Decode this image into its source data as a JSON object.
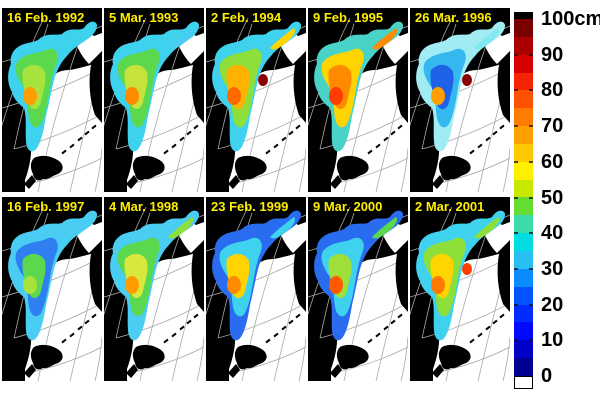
{
  "figure": {
    "background": "#ffffff",
    "map_background": "#000000",
    "ocean_color": "#ffffff",
    "land_color": "#000000",
    "graticule_color": "#a9a9a9",
    "date_color": "#ffee00",
    "rows": 2,
    "cols": 5
  },
  "panels": [
    {
      "date": "16 Feb. 1992",
      "fills": {
        "base": "#3fd2ee",
        "mid": "#5cd84e",
        "core": "#a8e23c",
        "arm": "#3fd2ee",
        "spot1": "#ff9c00",
        "spot2": "transparent"
      }
    },
    {
      "date": "5 Mar. 1993",
      "fills": {
        "base": "#3fd2ee",
        "mid": "#5cd84e",
        "core": "#c6e23c",
        "arm": "#49cdf2",
        "spot1": "#ff8a00",
        "spot2": "transparent"
      }
    },
    {
      "date": "2 Feb. 1994",
      "fills": {
        "base": "#3fd2ee",
        "mid": "#8fdf3a",
        "core": "#ffb300",
        "arm": "#ffd400",
        "spot1": "#ff6a00",
        "spot2": "#8b0000"
      }
    },
    {
      "date": "9 Feb. 1995",
      "fills": {
        "base": "#49d2c8",
        "mid": "#ffd400",
        "core": "#ff8a00",
        "arm": "#ff8a00",
        "spot1": "#ff3c00",
        "spot2": "transparent"
      }
    },
    {
      "date": "26 Mar. 1996",
      "fills": {
        "base": "#a0ecf2",
        "mid": "#35b7f0",
        "core": "#1f62e8",
        "arm": "#7fe8f0",
        "spot1": "#ffa000",
        "spot2": "#8b0000"
      }
    },
    {
      "date": "16 Feb. 1997",
      "fills": {
        "base": "#49cdf2",
        "mid": "#2f7ff0",
        "core": "#5cd84e",
        "arm": "#49cdf2",
        "spot1": "#a8e23c",
        "spot2": "transparent"
      }
    },
    {
      "date": "4 Mar. 1998",
      "fills": {
        "base": "#49cdf2",
        "mid": "#5cd84e",
        "core": "#d9e83c",
        "arm": "#8fdf3a",
        "spot1": "#ff9c00",
        "spot2": "transparent"
      }
    },
    {
      "date": "23 Feb. 1999",
      "fills": {
        "base": "#2a6cf0",
        "mid": "#3fd2ee",
        "core": "#ffd400",
        "arm": "#3fd2ee",
        "spot1": "#ff8c00",
        "spot2": "transparent"
      }
    },
    {
      "date": "9 Mar. 2000",
      "fills": {
        "base": "#2a6cf0",
        "mid": "#3fd2ee",
        "core": "#9fdf3a",
        "arm": "#5cd84e",
        "spot1": "#ff5a00",
        "spot2": "transparent"
      }
    },
    {
      "date": "2 Mar. 2001",
      "fills": {
        "base": "#3fd2ee",
        "mid": "#8fdf3a",
        "core": "#ffd400",
        "arm": "#8fdf3a",
        "spot1": "#ff7a00",
        "spot2": "#ff3c00"
      }
    }
  ],
  "colorbar": {
    "unit": "cm",
    "ticks": [
      {
        "value": 100,
        "label": "100"
      },
      {
        "value": 90,
        "label": "90"
      },
      {
        "value": 80,
        "label": "80"
      },
      {
        "value": 70,
        "label": "70"
      },
      {
        "value": 60,
        "label": "60"
      },
      {
        "value": 50,
        "label": "50"
      },
      {
        "value": 40,
        "label": "40"
      },
      {
        "value": 30,
        "label": "30"
      },
      {
        "value": 20,
        "label": "20"
      },
      {
        "value": 10,
        "label": "10"
      },
      {
        "value": 0,
        "label": "0"
      }
    ],
    "top_cap_color": "#000000",
    "bottom_cap_color": "#ffffff",
    "segments_top_to_bottom": [
      "#7a0000",
      "#aa0000",
      "#d80000",
      "#f42400",
      "#ff5200",
      "#ff7c00",
      "#ffa000",
      "#ffc800",
      "#fff000",
      "#c8e800",
      "#64dc32",
      "#3cdcaa",
      "#00dce0",
      "#28c0f0",
      "#0a8cff",
      "#0054ff",
      "#002cff",
      "#0008ff",
      "#0000c8",
      "#000090"
    ]
  },
  "chart_data": {
    "type": "heatmap",
    "title": "",
    "subtitle": "",
    "panel_dates": [
      "16 Feb. 1992",
      "5 Mar. 1993",
      "2 Feb. 1994",
      "9 Feb. 1995",
      "26 Mar. 1996",
      "16 Feb. 1997",
      "4 Mar. 1998",
      "23 Feb. 1999",
      "9 Mar. 2000",
      "2 Mar. 2001"
    ],
    "colorbar": {
      "unit": "cm",
      "min": 0,
      "max": 100,
      "ticks": [
        100,
        90,
        80,
        70,
        60,
        50,
        40,
        30,
        20,
        10,
        0
      ]
    },
    "layout": {
      "rows": 2,
      "cols": 5,
      "legend_position": "right",
      "grid": "graticule"
    }
  }
}
